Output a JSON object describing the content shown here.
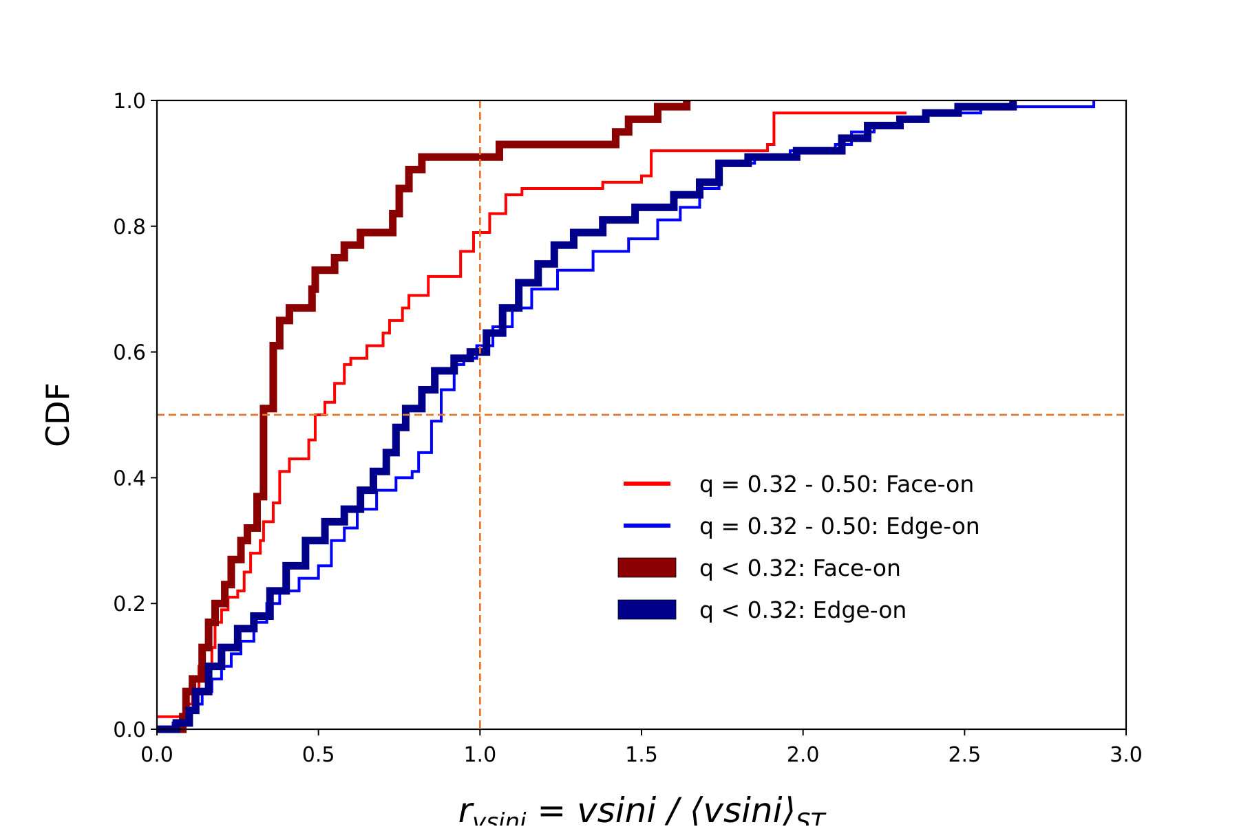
{
  "chart_data": {
    "type": "line",
    "drawstyle": "steps",
    "title": "",
    "xlabel": {
      "lead": "r",
      "lead_sub": "vsini",
      "eq": " = vsini / ⟨vsini⟩",
      "tail_sub": "ST"
    },
    "ylabel": "CDF",
    "xlim": [
      0.0,
      3.0
    ],
    "ylim": [
      0.0,
      1.0
    ],
    "xticks": [
      0.0,
      0.5,
      1.0,
      1.5,
      2.0,
      2.5,
      3.0
    ],
    "xtick_labels": [
      "0.0",
      "0.5",
      "1.0",
      "1.5",
      "2.0",
      "2.5",
      "3.0"
    ],
    "yticks": [
      0.0,
      0.2,
      0.4,
      0.6,
      0.8,
      1.0
    ],
    "ytick_labels": [
      "0.0",
      "0.2",
      "0.4",
      "0.6",
      "0.8",
      "1.0"
    ],
    "grid": false,
    "legend_position": "center-right",
    "reference_lines": [
      {
        "orientation": "vertical",
        "value": 1.0,
        "color": "#e8772e",
        "style": "dashed"
      },
      {
        "orientation": "horizontal",
        "value": 0.5,
        "color": "#e8772e",
        "style": "dashed"
      }
    ],
    "series": [
      {
        "name": "q = 0.32 - 0.50: Face-on",
        "color": "#ff0000",
        "weight": "thin",
        "points": [
          [
            0.0,
            0.02
          ],
          [
            0.06,
            0.02
          ],
          [
            0.09,
            0.04
          ],
          [
            0.11,
            0.06
          ],
          [
            0.13,
            0.1
          ],
          [
            0.17,
            0.13
          ],
          [
            0.18,
            0.17
          ],
          [
            0.2,
            0.19
          ],
          [
            0.22,
            0.21
          ],
          [
            0.25,
            0.22
          ],
          [
            0.27,
            0.25
          ],
          [
            0.29,
            0.28
          ],
          [
            0.32,
            0.3
          ],
          [
            0.33,
            0.33
          ],
          [
            0.36,
            0.36
          ],
          [
            0.38,
            0.41
          ],
          [
            0.41,
            0.43
          ],
          [
            0.47,
            0.46
          ],
          [
            0.49,
            0.5
          ],
          [
            0.52,
            0.52
          ],
          [
            0.55,
            0.55
          ],
          [
            0.58,
            0.58
          ],
          [
            0.6,
            0.59
          ],
          [
            0.65,
            0.61
          ],
          [
            0.7,
            0.63
          ],
          [
            0.72,
            0.65
          ],
          [
            0.76,
            0.67
          ],
          [
            0.78,
            0.69
          ],
          [
            0.84,
            0.72
          ],
          [
            0.94,
            0.76
          ],
          [
            0.98,
            0.79
          ],
          [
            1.03,
            0.82
          ],
          [
            1.08,
            0.85
          ],
          [
            1.13,
            0.86
          ],
          [
            1.38,
            0.87
          ],
          [
            1.5,
            0.88
          ],
          [
            1.53,
            0.92
          ],
          [
            1.89,
            0.93
          ],
          [
            1.91,
            0.98
          ],
          [
            2.32,
            0.98
          ]
        ]
      },
      {
        "name": "q = 0.32 - 0.50: Edge-on",
        "color": "#0000ff",
        "weight": "thin",
        "points": [
          [
            0.0,
            0.0
          ],
          [
            0.05,
            0.01
          ],
          [
            0.08,
            0.02
          ],
          [
            0.1,
            0.03
          ],
          [
            0.12,
            0.04
          ],
          [
            0.14,
            0.06
          ],
          [
            0.17,
            0.08
          ],
          [
            0.2,
            0.1
          ],
          [
            0.23,
            0.12
          ],
          [
            0.26,
            0.14
          ],
          [
            0.3,
            0.17
          ],
          [
            0.34,
            0.2
          ],
          [
            0.38,
            0.22
          ],
          [
            0.44,
            0.24
          ],
          [
            0.5,
            0.26
          ],
          [
            0.54,
            0.3
          ],
          [
            0.58,
            0.32
          ],
          [
            0.62,
            0.35
          ],
          [
            0.68,
            0.38
          ],
          [
            0.74,
            0.4
          ],
          [
            0.79,
            0.41
          ],
          [
            0.81,
            0.44
          ],
          [
            0.85,
            0.49
          ],
          [
            0.88,
            0.54
          ],
          [
            0.92,
            0.58
          ],
          [
            0.95,
            0.59
          ],
          [
            0.99,
            0.61
          ],
          [
            1.04,
            0.64
          ],
          [
            1.1,
            0.67
          ],
          [
            1.16,
            0.7
          ],
          [
            1.24,
            0.73
          ],
          [
            1.35,
            0.76
          ],
          [
            1.46,
            0.78
          ],
          [
            1.55,
            0.81
          ],
          [
            1.62,
            0.83
          ],
          [
            1.68,
            0.86
          ],
          [
            1.74,
            0.9
          ],
          [
            1.85,
            0.91
          ],
          [
            1.96,
            0.92
          ],
          [
            2.1,
            0.93
          ],
          [
            2.15,
            0.95
          ],
          [
            2.22,
            0.96
          ],
          [
            2.3,
            0.97
          ],
          [
            2.38,
            0.98
          ],
          [
            2.55,
            0.99
          ],
          [
            2.9,
            1.0
          ]
        ]
      },
      {
        "name": "q < 0.32: Face-on",
        "color": "#8b0000",
        "weight": "thick",
        "points": [
          [
            0.0,
            0.0
          ],
          [
            0.08,
            0.02
          ],
          [
            0.09,
            0.06
          ],
          [
            0.11,
            0.08
          ],
          [
            0.14,
            0.13
          ],
          [
            0.16,
            0.17
          ],
          [
            0.18,
            0.2
          ],
          [
            0.21,
            0.23
          ],
          [
            0.23,
            0.27
          ],
          [
            0.26,
            0.3
          ],
          [
            0.28,
            0.32
          ],
          [
            0.31,
            0.37
          ],
          [
            0.33,
            0.51
          ],
          [
            0.36,
            0.61
          ],
          [
            0.38,
            0.65
          ],
          [
            0.41,
            0.67
          ],
          [
            0.48,
            0.7
          ],
          [
            0.49,
            0.73
          ],
          [
            0.55,
            0.75
          ],
          [
            0.58,
            0.77
          ],
          [
            0.63,
            0.79
          ],
          [
            0.73,
            0.82
          ],
          [
            0.75,
            0.86
          ],
          [
            0.78,
            0.89
          ],
          [
            0.82,
            0.91
          ],
          [
            1.06,
            0.93
          ],
          [
            1.42,
            0.95
          ],
          [
            1.46,
            0.97
          ],
          [
            1.55,
            0.99
          ],
          [
            1.64,
            1.0
          ]
        ]
      },
      {
        "name": "q < 0.32: Edge-on",
        "color": "#00008b",
        "weight": "thick",
        "points": [
          [
            0.0,
            0.0
          ],
          [
            0.06,
            0.01
          ],
          [
            0.1,
            0.03
          ],
          [
            0.12,
            0.06
          ],
          [
            0.16,
            0.1
          ],
          [
            0.2,
            0.13
          ],
          [
            0.25,
            0.16
          ],
          [
            0.3,
            0.18
          ],
          [
            0.35,
            0.22
          ],
          [
            0.4,
            0.26
          ],
          [
            0.46,
            0.3
          ],
          [
            0.52,
            0.33
          ],
          [
            0.58,
            0.35
          ],
          [
            0.63,
            0.38
          ],
          [
            0.67,
            0.41
          ],
          [
            0.71,
            0.44
          ],
          [
            0.74,
            0.48
          ],
          [
            0.77,
            0.51
          ],
          [
            0.82,
            0.54
          ],
          [
            0.86,
            0.57
          ],
          [
            0.92,
            0.59
          ],
          [
            0.97,
            0.6
          ],
          [
            1.02,
            0.63
          ],
          [
            1.07,
            0.67
          ],
          [
            1.12,
            0.71
          ],
          [
            1.18,
            0.74
          ],
          [
            1.23,
            0.77
          ],
          [
            1.29,
            0.79
          ],
          [
            1.38,
            0.81
          ],
          [
            1.48,
            0.83
          ],
          [
            1.6,
            0.85
          ],
          [
            1.68,
            0.87
          ],
          [
            1.74,
            0.9
          ],
          [
            1.83,
            0.91
          ],
          [
            1.98,
            0.92
          ],
          [
            2.12,
            0.94
          ],
          [
            2.2,
            0.96
          ],
          [
            2.3,
            0.97
          ],
          [
            2.38,
            0.98
          ],
          [
            2.48,
            0.99
          ],
          [
            2.65,
            1.0
          ]
        ]
      }
    ]
  }
}
